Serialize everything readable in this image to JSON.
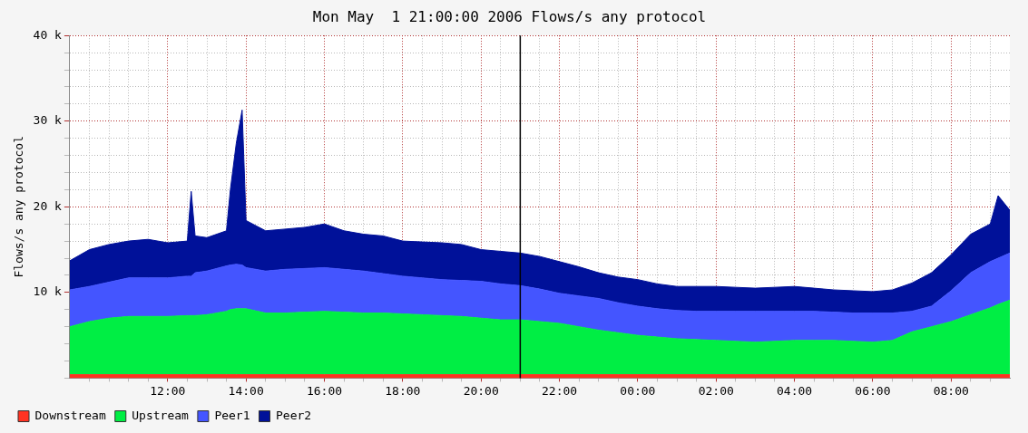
{
  "chart_data": {
    "type": "area",
    "title": "Mon May  1 21:00:00 2006 Flows/s any protocol",
    "ylabel": "Flows/s any protocol",
    "x": [
      "2006-05-01T09:30",
      "2006-05-01T10:00",
      "2006-05-01T10:30",
      "2006-05-01T11:00",
      "2006-05-01T11:30",
      "2006-05-01T12:00",
      "2006-05-01T12:30",
      "2006-05-01T12:36",
      "2006-05-01T12:42",
      "2006-05-01T13:00",
      "2006-05-01T13:30",
      "2006-05-01T13:36",
      "2006-05-01T13:45",
      "2006-05-01T13:54",
      "2006-05-01T14:00",
      "2006-05-01T14:30",
      "2006-05-01T15:00",
      "2006-05-01T15:30",
      "2006-05-01T16:00",
      "2006-05-01T16:30",
      "2006-05-01T17:00",
      "2006-05-01T17:30",
      "2006-05-01T18:00",
      "2006-05-01T18:30",
      "2006-05-01T19:00",
      "2006-05-01T19:30",
      "2006-05-01T20:00",
      "2006-05-01T20:30",
      "2006-05-01T21:00",
      "2006-05-01T21:30",
      "2006-05-01T22:00",
      "2006-05-01T22:30",
      "2006-05-01T23:00",
      "2006-05-01T23:30",
      "2006-05-02T00:00",
      "2006-05-02T00:30",
      "2006-05-02T01:00",
      "2006-05-02T01:30",
      "2006-05-02T02:00",
      "2006-05-02T02:30",
      "2006-05-02T03:00",
      "2006-05-02T03:30",
      "2006-05-02T04:00",
      "2006-05-02T04:30",
      "2006-05-02T05:00",
      "2006-05-02T05:30",
      "2006-05-02T06:00",
      "2006-05-02T06:30",
      "2006-05-02T07:00",
      "2006-05-02T07:30",
      "2006-05-02T08:00",
      "2006-05-02T08:30",
      "2006-05-02T09:00",
      "2006-05-02T09:12",
      "2006-05-02T09:30"
    ],
    "stacked": true,
    "series": [
      {
        "name": "Downstream",
        "color": "#ff3322",
        "values": [
          400,
          400,
          400,
          400,
          400,
          400,
          400,
          400,
          400,
          400,
          400,
          400,
          400,
          400,
          400,
          400,
          400,
          400,
          400,
          400,
          400,
          400,
          400,
          400,
          400,
          400,
          400,
          400,
          400,
          400,
          400,
          400,
          400,
          400,
          400,
          400,
          400,
          400,
          400,
          400,
          400,
          400,
          400,
          400,
          400,
          400,
          400,
          400,
          400,
          400,
          400,
          400,
          400,
          400,
          400
        ]
      },
      {
        "name": "Upstream",
        "color": "#00ee44",
        "values": [
          5600,
          6200,
          6600,
          6800,
          6800,
          6800,
          6900,
          6900,
          6900,
          7000,
          7400,
          7600,
          7700,
          7700,
          7700,
          7200,
          7200,
          7300,
          7400,
          7300,
          7200,
          7200,
          7100,
          7000,
          6900,
          6800,
          6600,
          6400,
          6400,
          6200,
          6000,
          5600,
          5200,
          4900,
          4600,
          4400,
          4200,
          4100,
          4000,
          3900,
          3800,
          3900,
          4000,
          4000,
          4000,
          3900,
          3800,
          4000,
          5000,
          5600,
          6200,
          7000,
          7800,
          8200,
          8700
        ]
      },
      {
        "name": "Peer1",
        "color": "#4455ff",
        "values": [
          4300,
          4100,
          4200,
          4500,
          4500,
          4500,
          4600,
          4600,
          5000,
          5100,
          5300,
          5200,
          5200,
          5100,
          4800,
          4900,
          5100,
          5100,
          5100,
          5000,
          4900,
          4600,
          4400,
          4300,
          4200,
          4200,
          4300,
          4200,
          4000,
          3800,
          3500,
          3600,
          3700,
          3500,
          3400,
          3300,
          3300,
          3300,
          3400,
          3500,
          3600,
          3500,
          3400,
          3400,
          3300,
          3300,
          3400,
          3200,
          2400,
          2400,
          3600,
          4900,
          5400,
          5400,
          5500
        ]
      },
      {
        "name": "Peer2",
        "color": "#001199",
        "values": [
          3400,
          4300,
          4400,
          4300,
          4500,
          4100,
          4100,
          9900,
          4300,
          3900,
          4100,
          8800,
          14100,
          18100,
          5500,
          4700,
          4700,
          4800,
          5100,
          4500,
          4300,
          4400,
          4100,
          4200,
          4300,
          4200,
          3700,
          3800,
          3800,
          3800,
          3700,
          3400,
          3000,
          3000,
          3100,
          2900,
          2800,
          2900,
          2900,
          2800,
          2700,
          2800,
          2900,
          2700,
          2600,
          2600,
          2500,
          2700,
          3300,
          3900,
          4200,
          4500,
          4400,
          7300,
          5000
        ]
      }
    ],
    "xlim": [
      "2006-05-01T09:30",
      "2006-05-02T09:30"
    ],
    "xticks": [
      {
        "value": "2006-05-01T10:00",
        "label": null
      },
      {
        "value": "2006-05-01T10:30",
        "label": null
      },
      {
        "value": "2006-05-01T11:00",
        "label": null
      },
      {
        "value": "2006-05-01T11:30",
        "label": null
      },
      {
        "value": "2006-05-01T12:00",
        "label": "12:00"
      },
      {
        "value": "2006-05-01T12:30",
        "label": null
      },
      {
        "value": "2006-05-01T13:00",
        "label": null
      },
      {
        "value": "2006-05-01T13:30",
        "label": null
      },
      {
        "value": "2006-05-01T14:00",
        "label": "14:00"
      },
      {
        "value": "2006-05-01T14:30",
        "label": null
      },
      {
        "value": "2006-05-01T15:00",
        "label": null
      },
      {
        "value": "2006-05-01T15:30",
        "label": null
      },
      {
        "value": "2006-05-01T16:00",
        "label": "16:00"
      },
      {
        "value": "2006-05-01T16:30",
        "label": null
      },
      {
        "value": "2006-05-01T17:00",
        "label": null
      },
      {
        "value": "2006-05-01T17:30",
        "label": null
      },
      {
        "value": "2006-05-01T18:00",
        "label": "18:00"
      },
      {
        "value": "2006-05-01T18:30",
        "label": null
      },
      {
        "value": "2006-05-01T19:00",
        "label": null
      },
      {
        "value": "2006-05-01T19:30",
        "label": null
      },
      {
        "value": "2006-05-01T20:00",
        "label": "20:00"
      },
      {
        "value": "2006-05-01T20:30",
        "label": null
      },
      {
        "value": "2006-05-01T21:00",
        "label": null
      },
      {
        "value": "2006-05-01T21:30",
        "label": null
      },
      {
        "value": "2006-05-01T22:00",
        "label": "22:00"
      },
      {
        "value": "2006-05-01T22:30",
        "label": null
      },
      {
        "value": "2006-05-01T23:00",
        "label": null
      },
      {
        "value": "2006-05-01T23:30",
        "label": null
      },
      {
        "value": "2006-05-02T00:00",
        "label": "00:00"
      },
      {
        "value": "2006-05-02T00:30",
        "label": null
      },
      {
        "value": "2006-05-02T01:00",
        "label": null
      },
      {
        "value": "2006-05-02T01:30",
        "label": null
      },
      {
        "value": "2006-05-02T02:00",
        "label": "02:00"
      },
      {
        "value": "2006-05-02T02:30",
        "label": null
      },
      {
        "value": "2006-05-02T03:00",
        "label": null
      },
      {
        "value": "2006-05-02T03:30",
        "label": null
      },
      {
        "value": "2006-05-02T04:00",
        "label": "04:00"
      },
      {
        "value": "2006-05-02T04:30",
        "label": null
      },
      {
        "value": "2006-05-02T05:00",
        "label": null
      },
      {
        "value": "2006-05-02T05:30",
        "label": null
      },
      {
        "value": "2006-05-02T06:00",
        "label": "06:00"
      },
      {
        "value": "2006-05-02T06:30",
        "label": null
      },
      {
        "value": "2006-05-02T07:00",
        "label": null
      },
      {
        "value": "2006-05-02T07:30",
        "label": null
      },
      {
        "value": "2006-05-02T08:00",
        "label": "08:00"
      },
      {
        "value": "2006-05-02T08:30",
        "label": null
      },
      {
        "value": "2006-05-02T09:00",
        "label": null
      }
    ],
    "ylim": [
      0,
      40000
    ],
    "yticks": [
      {
        "value": 0,
        "label": null
      },
      {
        "value": 2000,
        "label": null
      },
      {
        "value": 4000,
        "label": null
      },
      {
        "value": 6000,
        "label": null
      },
      {
        "value": 8000,
        "label": null
      },
      {
        "value": 10000,
        "label": "10 k"
      },
      {
        "value": 12000,
        "label": null
      },
      {
        "value": 14000,
        "label": null
      },
      {
        "value": 16000,
        "label": null
      },
      {
        "value": 18000,
        "label": null
      },
      {
        "value": 20000,
        "label": "20 k"
      },
      {
        "value": 22000,
        "label": null
      },
      {
        "value": 24000,
        "label": null
      },
      {
        "value": 26000,
        "label": null
      },
      {
        "value": 28000,
        "label": null
      },
      {
        "value": 30000,
        "label": "30 k"
      },
      {
        "value": 32000,
        "label": null
      },
      {
        "value": 34000,
        "label": null
      },
      {
        "value": 36000,
        "label": null
      },
      {
        "value": 38000,
        "label": null
      },
      {
        "value": 40000,
        "label": "40 k"
      }
    ],
    "ref_lines": [
      {
        "axis": "x",
        "value": "2006-05-01T21:00",
        "color": "#000000"
      }
    ],
    "grid": true,
    "legend": "bottom left"
  }
}
